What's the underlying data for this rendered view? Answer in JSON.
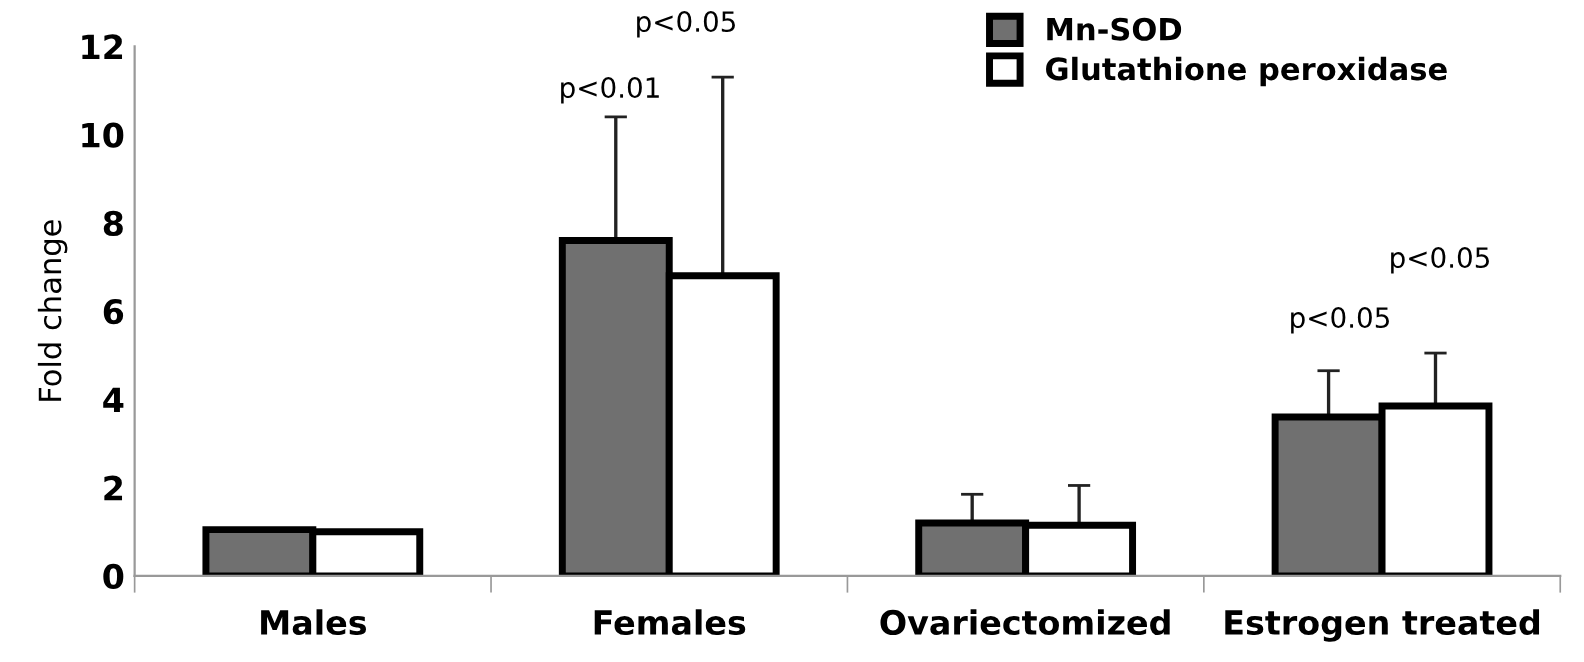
{
  "chart_data": {
    "type": "bar",
    "ylabel": "Fold change",
    "categories": [
      "Males",
      "Females",
      "Ovariectomized",
      "Estrogen treated"
    ],
    "series": [
      {
        "name": "Mn-SOD",
        "color": "#707070",
        "values": [
          1.05,
          7.6,
          1.2,
          3.6
        ],
        "errors": [
          null,
          [
            7.6,
            10.4
          ],
          [
            1.2,
            1.85
          ],
          [
            3.6,
            4.65
          ]
        ]
      },
      {
        "name": "Glutathione peroxidase",
        "color": "#ffffff",
        "values": [
          1.0,
          6.8,
          1.15,
          3.85
        ],
        "errors": [
          null,
          [
            6.8,
            11.3
          ],
          [
            1.15,
            2.05
          ],
          [
            3.85,
            5.05
          ]
        ]
      }
    ],
    "ylim": [
      0,
      12
    ],
    "yticks": [
      0,
      2,
      4,
      6,
      8,
      10,
      12
    ],
    "grid": false,
    "legend": "top right",
    "annotations": [
      "p<0.01",
      "p<0.05",
      "p<0.05",
      "p<0.05"
    ]
  }
}
